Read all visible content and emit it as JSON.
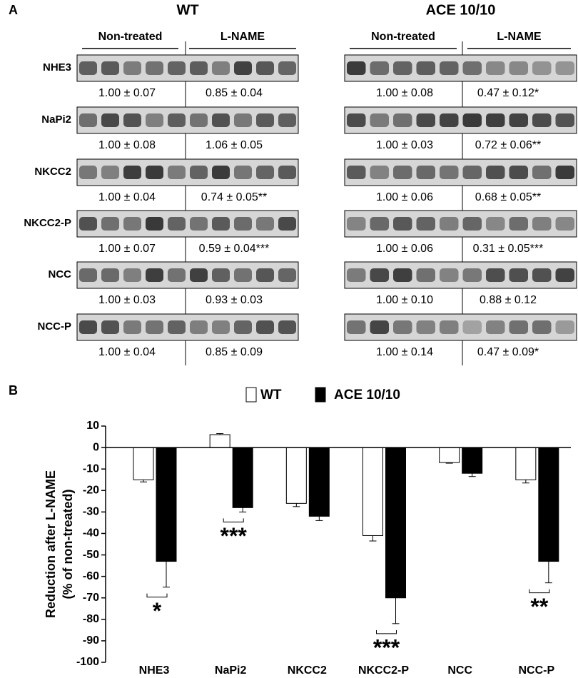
{
  "panel_a": {
    "label": "A",
    "groups": [
      {
        "name": "WT",
        "conditions": [
          "Non-treated",
          "L-NAME"
        ]
      },
      {
        "name": "ACE 10/10",
        "conditions": [
          "Non-treated",
          "L-NAME"
        ]
      }
    ],
    "rows": [
      {
        "protein": "NHE3",
        "values": [
          "1.00 ± 0.07",
          "0.85 ± 0.04",
          "1.00 ± 0.08",
          "0.47 ± 0.12*"
        ]
      },
      {
        "protein": "NaPi2",
        "values": [
          "1.00 ± 0.08",
          "1.06 ± 0.05",
          "1.00 ± 0.03",
          "0.72 ± 0.06**"
        ]
      },
      {
        "protein": "NKCC2",
        "values": [
          "1.00 ± 0.04",
          "0.74 ± 0.05**",
          "1.00 ± 0.06",
          "0.68 ± 0.05**"
        ]
      },
      {
        "protein": "NKCC2-P",
        "values": [
          "1.00 ± 0.07",
          "0.59 ± 0.04***",
          "1.00 ± 0.06",
          "0.31 ± 0.05***"
        ]
      },
      {
        "protein": "NCC",
        "values": [
          "1.00 ± 0.03",
          "0.93 ± 0.03",
          "1.00 ± 0.10",
          "0.88 ± 0.12"
        ]
      },
      {
        "protein": "NCC-P",
        "values": [
          "1.00 ± 0.04",
          "0.85 ± 0.09",
          "1.00 ± 0.14",
          "0.47 ± 0.09*"
        ]
      }
    ]
  },
  "chart_data": {
    "type": "bar",
    "panel_label": "B",
    "ylabel": [
      "Reduction after L-NAME",
      "(% of non-treated)"
    ],
    "categories": [
      "NHE3",
      "NaPi2",
      "NKCC2",
      "NKCC2-P",
      "NCC",
      "NCC-P"
    ],
    "series": [
      {
        "name": "WT",
        "color": "#ffffff",
        "values": [
          -15,
          6,
          -26,
          -41,
          -7,
          -15
        ],
        "errors": [
          1,
          0.5,
          1.5,
          2.5,
          0.3,
          1.5
        ]
      },
      {
        "name": "ACE 10/10",
        "color": "#000000",
        "values": [
          -53,
          -28,
          -32,
          -70,
          -12,
          -53
        ],
        "errors": [
          12,
          2,
          2,
          12,
          1.5,
          10
        ]
      }
    ],
    "annotations": [
      {
        "category": "NHE3",
        "text": "*"
      },
      {
        "category": "NaPi2",
        "text": "***"
      },
      {
        "category": "NKCC2-P",
        "text": "***"
      },
      {
        "category": "NCC-P",
        "text": "**"
      }
    ],
    "ylim": [
      -100,
      10
    ],
    "yticks": [
      -100,
      -90,
      -80,
      -70,
      -60,
      -50,
      -40,
      -30,
      -20,
      -10,
      0,
      10
    ],
    "legend": "top"
  }
}
